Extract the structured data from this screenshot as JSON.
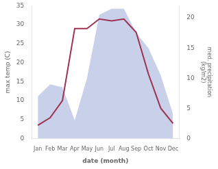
{
  "chart_data": {
    "type": "line",
    "categories": [
      "Jan",
      "Feb",
      "Mar",
      "Apr",
      "May",
      "Jun",
      "Jul",
      "Aug",
      "Sep",
      "Oct",
      "Nov",
      "Dec"
    ],
    "xlabel": "date (month)",
    "ylabel": "max temp (C)",
    "y2label": "med. precipitation\n(kg/m2)",
    "ylim": [
      0,
      35
    ],
    "yticks": [
      0,
      5,
      10,
      15,
      20,
      25,
      30,
      35
    ],
    "y2lim": [
      0,
      22
    ],
    "y2ticks": [
      0,
      5,
      10,
      15,
      20
    ],
    "grid": false,
    "series": [
      {
        "type": "area",
        "color": "#c8d0ea",
        "axis": "y2",
        "values": [
          7.0,
          9.0,
          8.5,
          3.0,
          10.0,
          20.5,
          21.5,
          21.5,
          17.5,
          15.0,
          10.5,
          4.0
        ]
      },
      {
        "type": "line",
        "color": "#a03050",
        "values": [
          3.5,
          5.5,
          10.0,
          29.0,
          29.0,
          31.5,
          31.0,
          31.5,
          28.0,
          17.0,
          8.0,
          4.0
        ]
      }
    ]
  }
}
